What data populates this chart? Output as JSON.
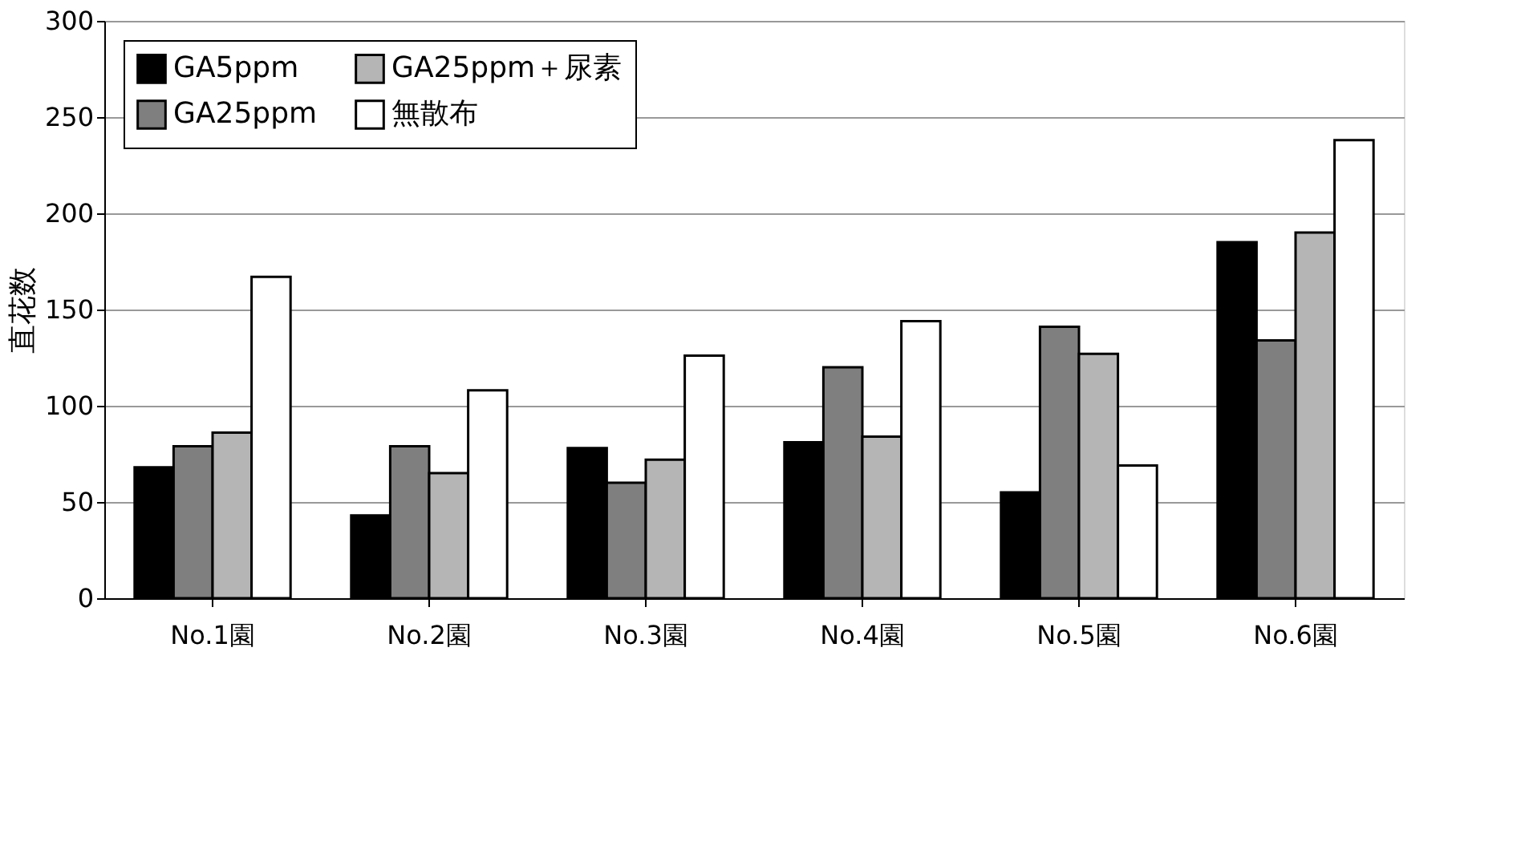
{
  "chart_data": {
    "type": "bar",
    "ylabel": "直花数",
    "categories": [
      "No.1園",
      "No.2園",
      "No.3園",
      "No.4園",
      "No.5園",
      "No.6園"
    ],
    "series": [
      {
        "name": "GA5ppm",
        "color": "#000000",
        "values": [
          68,
          43,
          78,
          81,
          55,
          185
        ]
      },
      {
        "name": "GA25ppm",
        "color": "#7f7f7f",
        "values": [
          79,
          79,
          60,
          120,
          141,
          134
        ]
      },
      {
        "name": "GA25ppm＋尿素",
        "color": "#b5b5b5",
        "values": [
          86,
          65,
          72,
          84,
          127,
          190
        ]
      },
      {
        "name": "無散布",
        "color": "#ffffff",
        "values": [
          167,
          108,
          126,
          144,
          69,
          238
        ]
      }
    ],
    "ylim": [
      0,
      300
    ],
    "yticks": [
      0,
      50,
      100,
      150,
      200,
      250,
      300
    ],
    "grid": "y",
    "legend": "top left"
  }
}
